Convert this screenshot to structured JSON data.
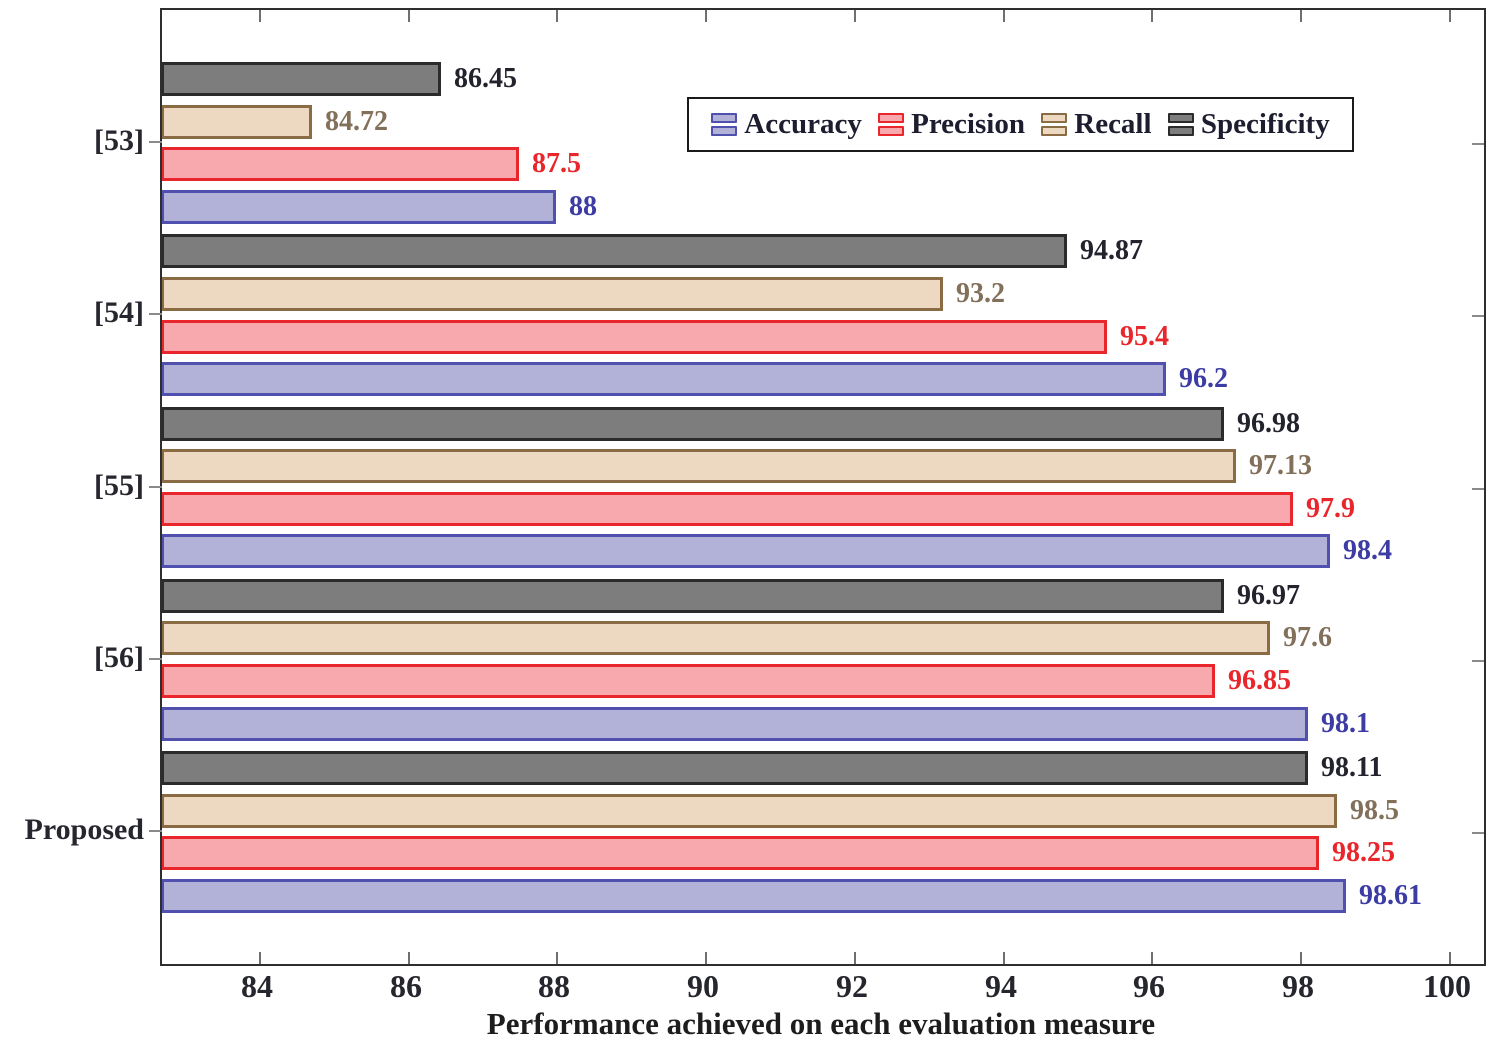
{
  "chart_data": {
    "type": "bar",
    "orientation": "horizontal",
    "title": "",
    "xlabel": "Performance achieved on each evaluation measure",
    "ylabel": "",
    "categories": [
      "[53]",
      "[54]",
      "[55]",
      "[56]",
      "Proposed"
    ],
    "series": [
      {
        "name": "Accuracy",
        "values": [
          88,
          96.2,
          98.4,
          98.1,
          98.61
        ],
        "fill": "#b2b2d8",
        "border": "#5050ae",
        "label_color": "#3c3ca4"
      },
      {
        "name": "Precision",
        "values": [
          87.5,
          95.4,
          97.9,
          96.85,
          98.25
        ],
        "fill": "#f8a9ad",
        "border": "#e9262c",
        "label_color": "#e9262c"
      },
      {
        "name": "Recall",
        "values": [
          84.72,
          93.2,
          97.13,
          97.6,
          98.5
        ],
        "fill": "#edd9c1",
        "border": "#8a6b44",
        "label_color": "#82705a"
      },
      {
        "name": "Specificity",
        "values": [
          86.45,
          94.87,
          96.98,
          96.97,
          98.11
        ],
        "fill": "#7d7d7d",
        "border": "#2b2b2b",
        "label_color": "#23232e"
      }
    ],
    "row_order_top_to_bottom": [
      "Specificity",
      "Recall",
      "Precision",
      "Accuracy"
    ],
    "xlim": [
      82.7,
      100.47
    ],
    "xticks": [
      84,
      86,
      88,
      90,
      92,
      94,
      96,
      98,
      100
    ],
    "grid": false,
    "legend_position": "top-center",
    "bar_values_shown": true,
    "axis_color": "#2e2e2e"
  }
}
